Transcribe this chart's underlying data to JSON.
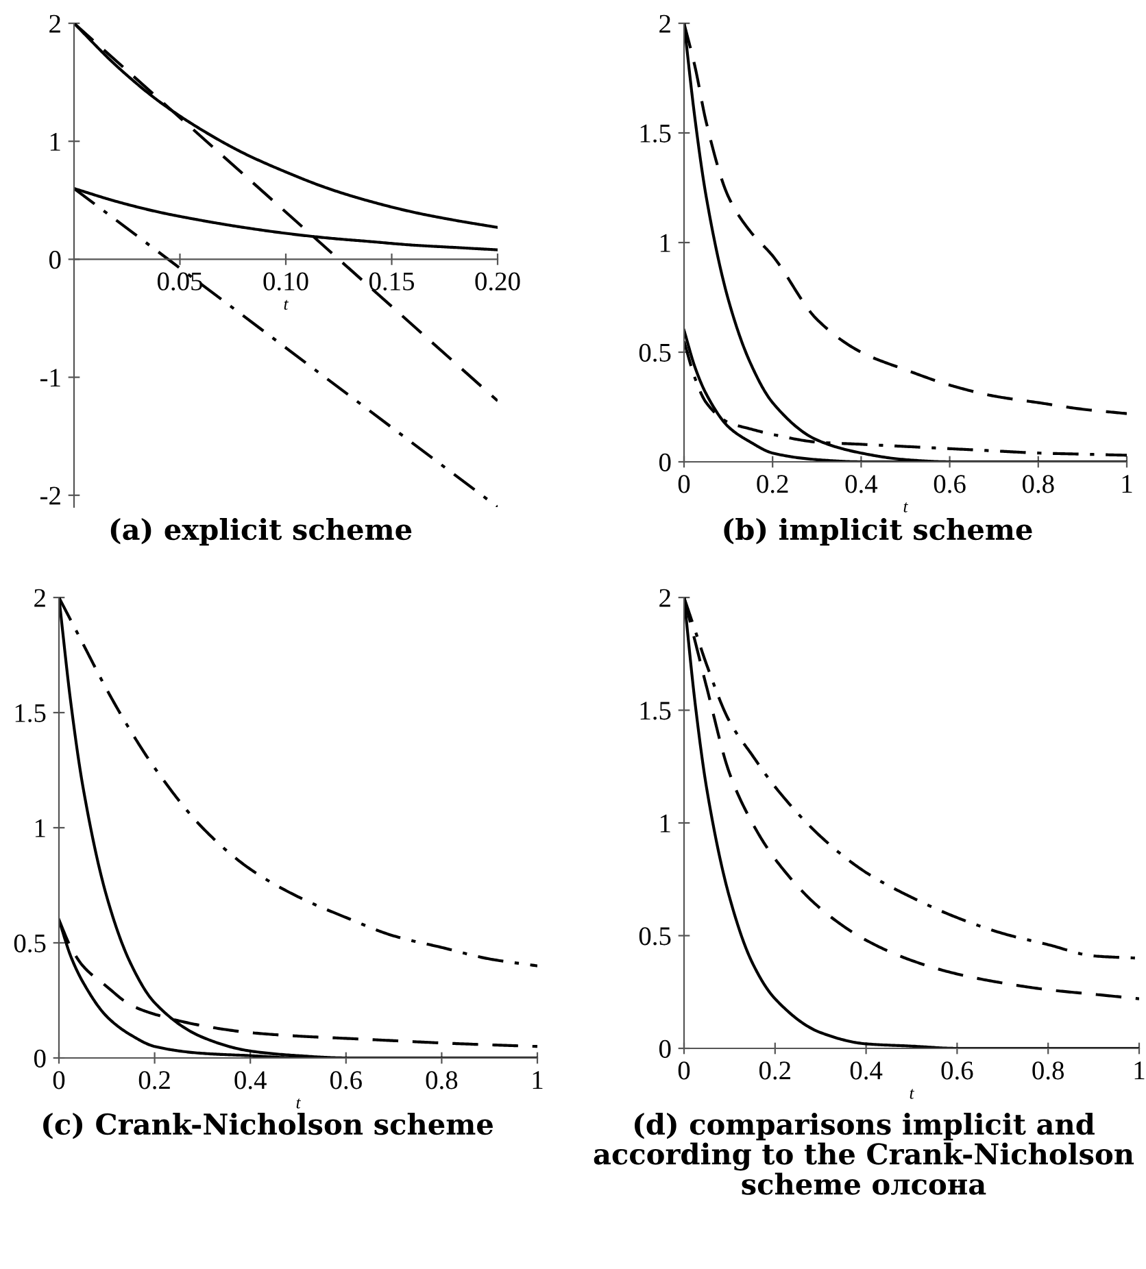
{
  "chart_data": [
    {
      "type": "line",
      "title": "(a) explicit scheme",
      "xlabel": "t",
      "xlim": [
        0,
        0.2
      ],
      "ylim": [
        -2.1,
        2
      ],
      "xticks": [
        0.05,
        {
          "value": 0.1,
          "label": "0.10"
        },
        0.15,
        {
          "value": 0.2,
          "label": "0.20"
        }
      ],
      "yticks": [
        {
          "value": -2,
          "label": "-2"
        },
        {
          "value": -1,
          "label": "-1"
        },
        0,
        1,
        2
      ],
      "series": [
        {
          "color": "#000000",
          "line_style": "solid",
          "x": [
            0,
            0.02,
            0.04,
            0.06,
            0.08,
            0.1,
            0.12,
            0.14,
            0.16,
            0.18,
            0.2
          ],
          "values": [
            2,
            1.64,
            1.34,
            1.1,
            0.9,
            0.74,
            0.6,
            0.49,
            0.4,
            0.33,
            0.27
          ]
        },
        {
          "color": "#000000",
          "line_style": "solid",
          "x": [
            0,
            0.02,
            0.04,
            0.06,
            0.08,
            0.1,
            0.12,
            0.14,
            0.16,
            0.18,
            0.2
          ],
          "values": [
            0.6,
            0.49,
            0.4,
            0.33,
            0.27,
            0.22,
            0.18,
            0.15,
            0.12,
            0.1,
            0.08
          ]
        },
        {
          "color": "#000000",
          "line_style": "dashed",
          "x": [
            0,
            0.2
          ],
          "values": [
            2,
            -1.2
          ]
        },
        {
          "color": "#000000",
          "line_style": "dashdot",
          "x": [
            0,
            0.2
          ],
          "values": [
            0.6,
            -2.1
          ]
        }
      ]
    },
    {
      "type": "line",
      "title": "(b) implicit scheme",
      "xlabel": "t",
      "xlim": [
        0,
        1
      ],
      "ylim": [
        0,
        2
      ],
      "xticks": [
        0,
        0.2,
        0.4,
        0.6,
        0.8,
        1
      ],
      "yticks": [
        0,
        0.5,
        1,
        1.5,
        2
      ],
      "x": [
        0,
        0.025,
        0.05,
        0.1,
        0.15,
        0.2,
        0.3,
        0.4,
        0.5,
        0.6,
        0.7,
        0.8,
        0.9,
        1
      ],
      "series": [
        {
          "color": "#000000",
          "line_style": "solid",
          "values": [
            2,
            1.56,
            1.21,
            0.74,
            0.45,
            0.27,
            0.1,
            0.04,
            0.01,
            0,
            0,
            0,
            0,
            0
          ]
        },
        {
          "color": "#000000",
          "line_style": "solid",
          "values": [
            0.6,
            0.43,
            0.31,
            0.16,
            0.09,
            0.04,
            0.01,
            0,
            0,
            0,
            0,
            0,
            0,
            0
          ]
        },
        {
          "color": "#000000",
          "line_style": "dashed",
          "values": [
            2,
            1.8,
            1.55,
            1.21,
            1.05,
            0.94,
            0.65,
            0.5,
            0.42,
            0.35,
            0.3,
            0.27,
            0.24,
            0.22
          ]
        },
        {
          "color": "#000000",
          "line_style": "dashdot",
          "values": [
            0.55,
            0.38,
            0.27,
            0.18,
            0.15,
            0.125,
            0.09,
            0.08,
            0.07,
            0.06,
            0.05,
            0.04,
            0.035,
            0.03
          ]
        }
      ]
    },
    {
      "type": "line",
      "title": "(c) Crank-Nicholson scheme",
      "xlabel": "t",
      "xlim": [
        0,
        1
      ],
      "ylim": [
        0,
        2
      ],
      "xticks": [
        0,
        0.2,
        0.4,
        0.6,
        0.8,
        1
      ],
      "yticks": [
        0,
        0.5,
        1,
        1.5,
        2
      ],
      "x": [
        0,
        0.025,
        0.05,
        0.1,
        0.15,
        0.2,
        0.3,
        0.4,
        0.5,
        0.6,
        0.7,
        0.8,
        0.9,
        1
      ],
      "series": [
        {
          "color": "#000000",
          "line_style": "solid",
          "values": [
            2,
            1.54,
            1.18,
            0.7,
            0.41,
            0.24,
            0.09,
            0.03,
            0.01,
            0,
            0,
            0,
            0,
            0
          ]
        },
        {
          "color": "#000000",
          "line_style": "solid",
          "values": [
            0.6,
            0.44,
            0.33,
            0.18,
            0.1,
            0.05,
            0.02,
            0.01,
            0,
            0,
            0,
            0,
            0,
            0
          ]
        },
        {
          "color": "#000000",
          "line_style": "dashed",
          "values": [
            0.6,
            0.48,
            0.4,
            0.31,
            0.23,
            0.19,
            0.14,
            0.11,
            0.095,
            0.085,
            0.075,
            0.065,
            0.057,
            0.05
          ]
        },
        {
          "color": "#000000",
          "line_style": "dashdot",
          "values": [
            2,
            1.9,
            1.8,
            1.6,
            1.42,
            1.26,
            1.0,
            0.82,
            0.7,
            0.61,
            0.53,
            0.48,
            0.43,
            0.4
          ]
        }
      ]
    },
    {
      "type": "line",
      "title": "(d) comparisons implicit and according to the Crank-Nicholson scheme олсона",
      "xlabel": "t",
      "xlim": [
        0,
        1
      ],
      "ylim": [
        0,
        2
      ],
      "xticks": [
        0,
        0.2,
        0.4,
        0.6,
        0.8,
        1
      ],
      "yticks": [
        0,
        0.5,
        1,
        1.5,
        2
      ],
      "x": [
        0,
        0.025,
        0.05,
        0.1,
        0.15,
        0.2,
        0.3,
        0.4,
        0.5,
        0.6,
        0.7,
        0.8,
        0.9,
        1
      ],
      "series": [
        {
          "color": "#000000",
          "line_style": "solid",
          "values": [
            2,
            1.52,
            1.15,
            0.67,
            0.38,
            0.22,
            0.07,
            0.02,
            0.01,
            0,
            0,
            0,
            0,
            0
          ]
        },
        {
          "color": "#000000",
          "line_style": "dashed",
          "values": [
            2,
            1.8,
            1.6,
            1.22,
            1.0,
            0.84,
            0.62,
            0.48,
            0.39,
            0.33,
            0.29,
            0.26,
            0.24,
            0.22
          ]
        },
        {
          "color": "#000000",
          "line_style": "dashdot",
          "values": [
            2,
            1.85,
            1.7,
            1.45,
            1.3,
            1.16,
            0.94,
            0.78,
            0.67,
            0.58,
            0.51,
            0.46,
            0.41,
            0.4
          ]
        }
      ]
    }
  ]
}
